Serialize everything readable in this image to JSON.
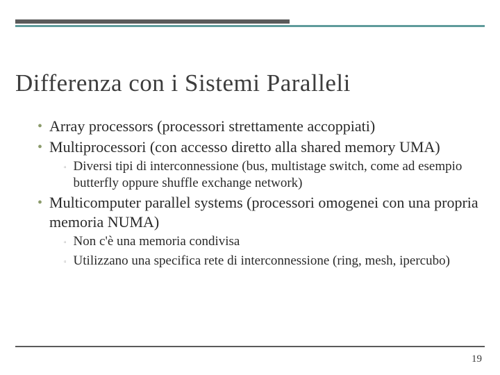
{
  "title": "Differenza con i Sistemi Paralleli",
  "bullets": {
    "b1": "Array processors (processori strettamente accoppiati)",
    "b2": "Multiprocessori (con accesso diretto alla shared memory UMA)",
    "b2s1": "Diversi tipi di interconnessione (bus, multistage switch, come ad esempio butterfly oppure shuffle exchange network)",
    "b3": "Multicomputer parallel systems (processori omogenei  con una propria memoria NUMA)",
    "b3s1": "Non c'è una memoria condivisa",
    "b3s2": "Utilizzano una specifica rete di interconnessione (ring, mesh, ipercubo)"
  },
  "pageNumber": "19",
  "colors": {
    "accent_teal": "#5e9b9b",
    "bullet_green": "#8b9b6b",
    "dark_gray": "#5a5a5a",
    "text": "#2a2a2a"
  }
}
